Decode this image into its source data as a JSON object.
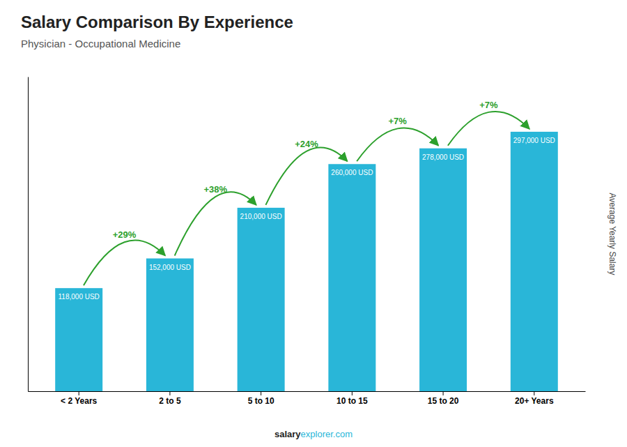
{
  "chart_data": {
    "type": "bar",
    "title": "Salary Comparison By Experience",
    "subtitle": "Physician - Occupational Medicine",
    "categories": [
      "< 2 Years",
      "2 to 5",
      "5 to 10",
      "10 to 15",
      "15 to 20",
      "20+ Years"
    ],
    "values": [
      118000,
      152000,
      210000,
      260000,
      278000,
      297000
    ],
    "value_labels": [
      "118,000 USD",
      "152,000 USD",
      "210,000 USD",
      "260,000 USD",
      "278,000 USD",
      "297,000 USD"
    ],
    "data_labels": true,
    "annotations": [
      "+29%",
      "+38%",
      "+24%",
      "+7%",
      "+7%"
    ],
    "ylabel": "Average Yearly Salary",
    "footer": [
      "salary",
      "explorer.com"
    ],
    "color": "#29b6d8",
    "ylim": [
      0,
      360000
    ],
    "yticks": [],
    "tick_labels": "x",
    "grid": false
  }
}
